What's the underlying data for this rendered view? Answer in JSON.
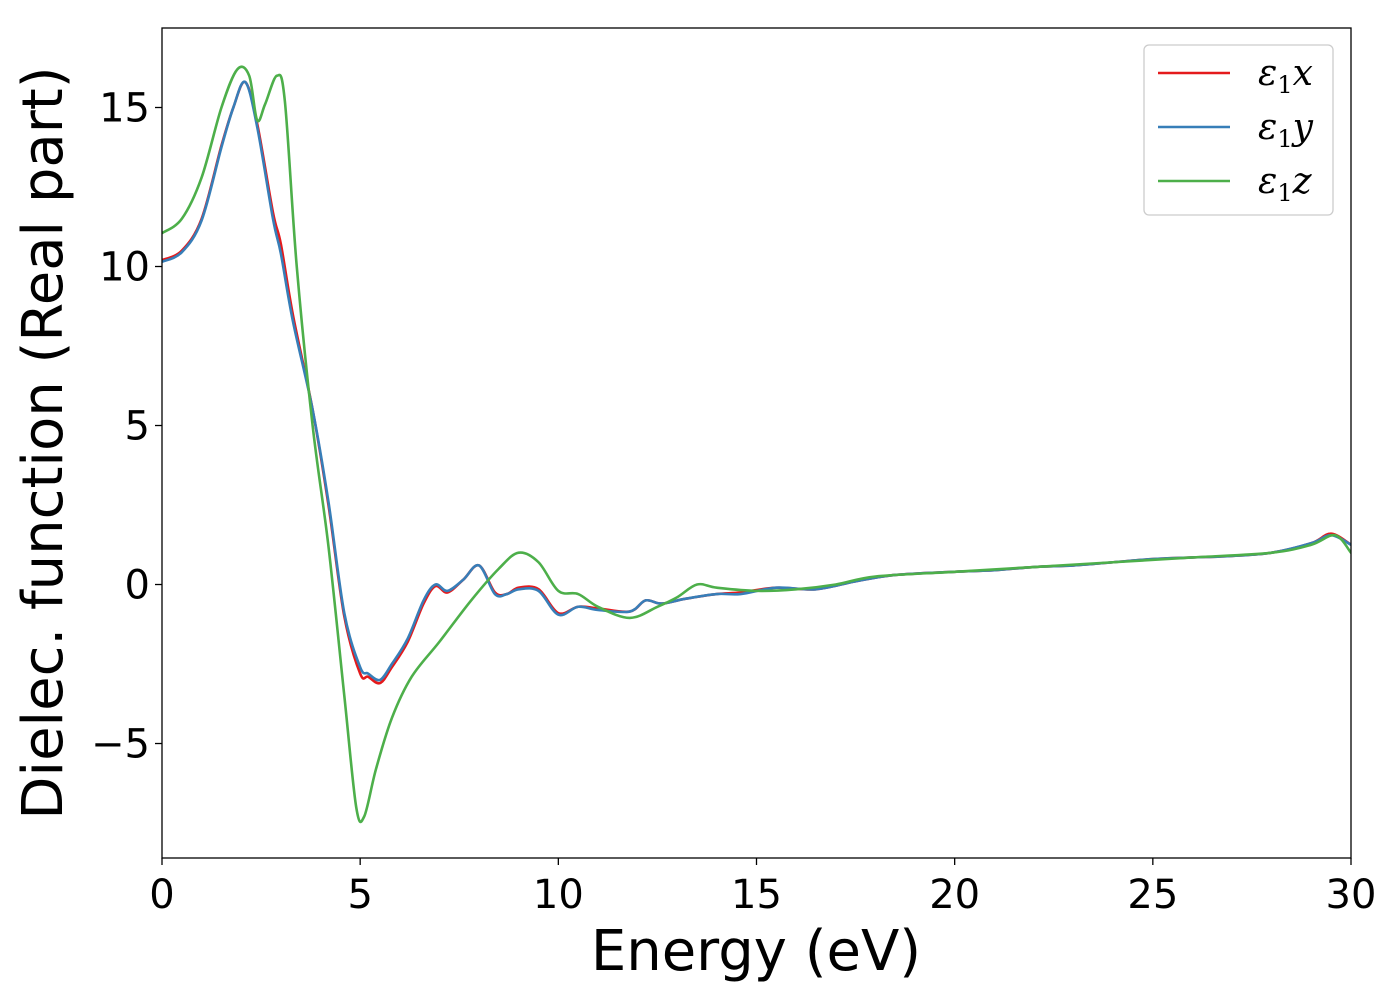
{
  "chart_data": {
    "type": "line",
    "xlabel": "Energy (eV)",
    "ylabel": "Dielec. function (Real part)",
    "xlim": [
      0,
      30
    ],
    "ylim": [
      -8.6,
      17.5
    ],
    "xticks": [
      0,
      5,
      10,
      15,
      20,
      25,
      30
    ],
    "yticks": [
      -5,
      0,
      5,
      10,
      15
    ],
    "xtick_labels": [
      "0",
      "5",
      "10",
      "15",
      "20",
      "25",
      "30"
    ],
    "ytick_labels": [
      "−5",
      "0",
      "5",
      "10",
      "15"
    ],
    "grid": false,
    "legend_position": "top-right",
    "series": [
      {
        "name": "ε1x",
        "symbol": "ε",
        "subscript": "1",
        "suffix": "x",
        "color": "#e41a1c",
        "x": [
          0,
          0.5,
          1,
          1.5,
          1.8,
          2.1,
          2.4,
          2.8,
          3.0,
          3.3,
          3.8,
          4.2,
          4.6,
          5.0,
          5.2,
          5.5,
          5.8,
          6.2,
          6.6,
          6.9,
          7.2,
          7.6,
          8.0,
          8.4,
          8.7,
          9.0,
          9.5,
          10.0,
          10.5,
          11.0,
          11.8,
          12.2,
          12.6,
          13.2,
          14.0,
          14.6,
          15.5,
          16.5,
          17.5,
          18.5,
          20,
          21,
          22,
          23,
          24,
          25,
          26,
          27,
          28,
          29,
          29.5,
          30
        ],
        "y": [
          10.2,
          10.5,
          11.5,
          13.8,
          15.0,
          15.8,
          14.5,
          11.7,
          10.7,
          8.5,
          5.5,
          2.5,
          -1.0,
          -2.8,
          -2.9,
          -3.1,
          -2.6,
          -1.8,
          -0.6,
          -0.05,
          -0.25,
          0.15,
          0.6,
          -0.25,
          -0.3,
          -0.1,
          -0.15,
          -0.9,
          -0.7,
          -0.75,
          -0.85,
          -0.5,
          -0.6,
          -0.45,
          -0.3,
          -0.25,
          -0.1,
          -0.15,
          0.1,
          0.3,
          0.4,
          0.45,
          0.55,
          0.6,
          0.7,
          0.8,
          0.85,
          0.9,
          1.0,
          1.3,
          1.6,
          1.25
        ]
      },
      {
        "name": "ε1y",
        "symbol": "ε",
        "subscript": "1",
        "suffix": "y",
        "color": "#377eb8",
        "x": [
          0,
          0.5,
          1,
          1.5,
          1.8,
          2.1,
          2.4,
          2.8,
          3.0,
          3.3,
          3.8,
          4.2,
          4.6,
          5.0,
          5.2,
          5.5,
          5.8,
          6.2,
          6.6,
          6.9,
          7.2,
          7.6,
          8.0,
          8.4,
          8.7,
          9.0,
          9.5,
          10.0,
          10.5,
          11.0,
          11.8,
          12.2,
          12.6,
          13.2,
          14.0,
          14.6,
          15.5,
          16.5,
          17.5,
          18.5,
          20,
          21,
          22,
          23,
          24,
          25,
          26,
          27,
          28,
          29,
          29.5,
          30
        ],
        "y": [
          10.15,
          10.45,
          11.45,
          13.75,
          15.0,
          15.8,
          14.4,
          11.5,
          10.4,
          8.3,
          5.5,
          2.6,
          -0.9,
          -2.6,
          -2.8,
          -3.0,
          -2.5,
          -1.7,
          -0.5,
          0.0,
          -0.2,
          0.15,
          0.6,
          -0.3,
          -0.3,
          -0.15,
          -0.2,
          -0.95,
          -0.7,
          -0.8,
          -0.85,
          -0.5,
          -0.6,
          -0.45,
          -0.3,
          -0.3,
          -0.1,
          -0.15,
          0.1,
          0.3,
          0.4,
          0.45,
          0.55,
          0.6,
          0.7,
          0.8,
          0.85,
          0.9,
          1.0,
          1.3,
          1.55,
          1.25
        ]
      },
      {
        "name": "ε1z",
        "symbol": "ε",
        "subscript": "1",
        "suffix": "z",
        "color": "#4daf4a",
        "x": [
          0,
          0.5,
          1,
          1.5,
          1.9,
          2.2,
          2.4,
          2.6,
          2.9,
          3.1,
          3.4,
          3.8,
          4.2,
          4.6,
          4.9,
          5.1,
          5.4,
          5.8,
          6.3,
          7.0,
          7.8,
          8.5,
          9.0,
          9.5,
          10.0,
          10.5,
          11.0,
          11.8,
          12.5,
          13.0,
          13.5,
          14.0,
          15.0,
          16.0,
          17.0,
          18.0,
          20,
          22,
          24,
          26,
          28,
          29.0,
          29.6,
          30
        ],
        "y": [
          11.05,
          11.5,
          12.8,
          15.0,
          16.2,
          16.0,
          14.6,
          15.1,
          16.0,
          15.2,
          10.0,
          5.0,
          1.2,
          -3.5,
          -7.0,
          -7.3,
          -5.8,
          -4.2,
          -2.9,
          -1.8,
          -0.5,
          0.5,
          1.0,
          0.7,
          -0.2,
          -0.3,
          -0.7,
          -1.05,
          -0.7,
          -0.4,
          0.0,
          -0.1,
          -0.2,
          -0.15,
          0.0,
          0.25,
          0.4,
          0.55,
          0.7,
          0.85,
          1.0,
          1.25,
          1.55,
          1.0
        ]
      }
    ]
  }
}
